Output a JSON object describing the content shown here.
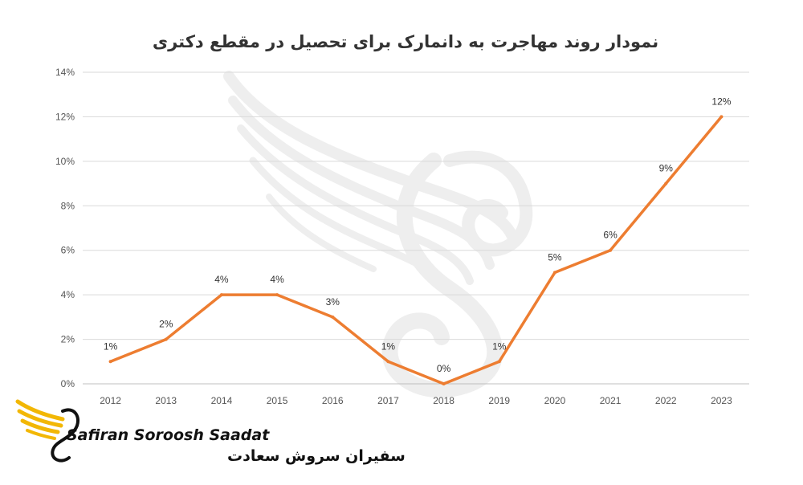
{
  "chart_data": {
    "type": "line",
    "title": "نمودار روند مهاجرت به دانمارک برای تحصیل در مقطع دکتری",
    "xlabel": "",
    "ylabel": "",
    "categories": [
      "2012",
      "2013",
      "2014",
      "2015",
      "2016",
      "2017",
      "2018",
      "2019",
      "2020",
      "2021",
      "2022",
      "2023"
    ],
    "series": [
      {
        "values": [
          1,
          2,
          4,
          4,
          3,
          1,
          0,
          1,
          5,
          6,
          9,
          12
        ]
      }
    ],
    "data_labels": [
      "1%",
      "2%",
      "4%",
      "4%",
      "3%",
      "1%",
      "0%",
      "1%",
      "5%",
      "6%",
      "9%",
      "12%"
    ],
    "y_ticks": [
      "0%",
      "2%",
      "4%",
      "6%",
      "8%",
      "10%",
      "12%",
      "14%"
    ],
    "ylim": [
      0,
      14
    ],
    "grid": true,
    "legend": "none",
    "colors": {
      "line": "#ED7D31",
      "grid": "#D9D9D9",
      "logo_gold": "#F2B705"
    }
  },
  "watermark": {
    "icon": "swan-wing-watermark"
  },
  "brand": {
    "icon": "swan-wing-logo",
    "name_en": "Safiran Soroosh Saadat",
    "name_fa": "سفیران سروش سعادت"
  }
}
